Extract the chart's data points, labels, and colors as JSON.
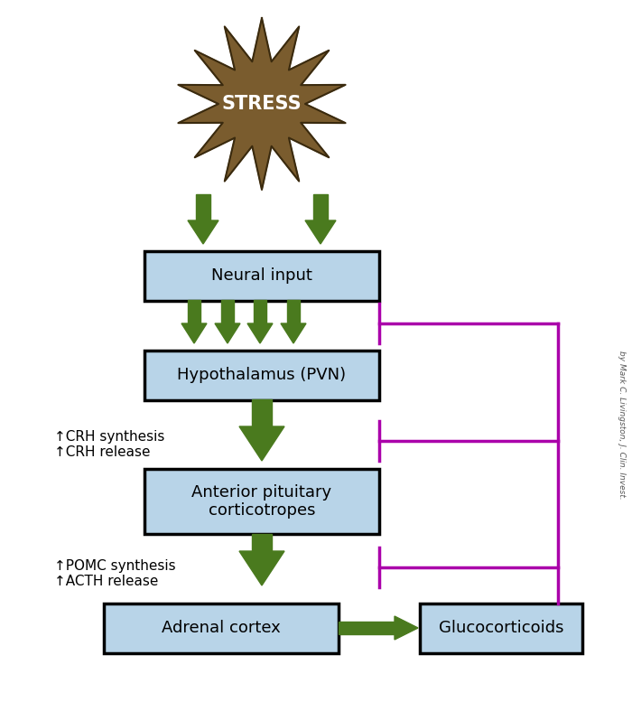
{
  "bg_color": "#ffffff",
  "box_fill": "#b8d4e8",
  "box_edge": "#000000",
  "arrow_color": "#4a7a1e",
  "inhibit_color": "#aa00aa",
  "stress_color": "#7a5c2e",
  "stress_edge": "#3a2a0e",
  "stress_text": "STRESS",
  "box1_label": "Neural input",
  "box2_label": "Hypothalamus (PVN)",
  "box3_label": "Anterior pituitary\ncorticotropes",
  "box4_label": "Adrenal cortex",
  "box5_label": "Glucocorticoids",
  "annot1": "↑CRH synthesis\n↑CRH release",
  "annot2": "↑POMC synthesis\n↑ACTH release",
  "watermark": "by Mark C. Livingston, J. Clin. Invest.",
  "figsize": [
    7.0,
    7.77
  ],
  "dpi": 100
}
